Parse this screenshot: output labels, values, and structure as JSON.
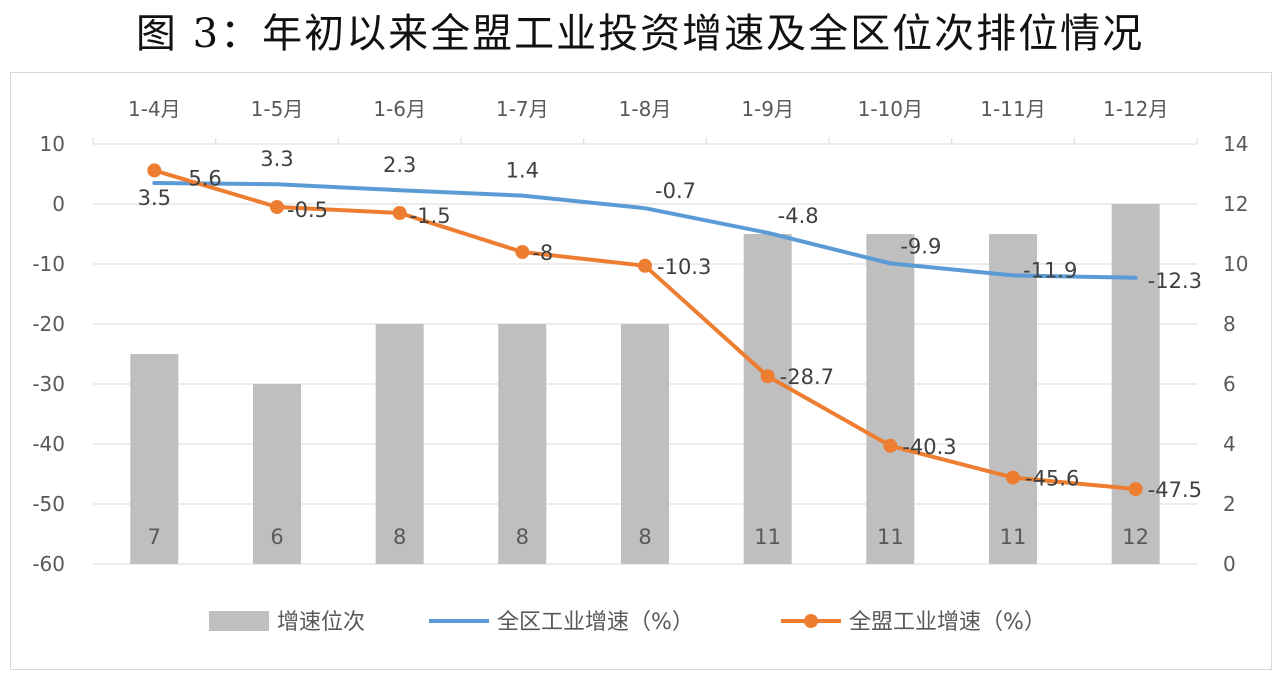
{
  "title": "图 3：年初以来全盟工业投资增速及全区位次排位情况",
  "chart_data": {
    "type": "bar+line",
    "categories": [
      "1-4月",
      "1-5月",
      "1-6月",
      "1-7月",
      "1-8月",
      "1-9月",
      "1-10月",
      "1-11月",
      "1-12月"
    ],
    "left_axis": {
      "range": [
        -60,
        10
      ],
      "ticks": [
        10,
        0,
        -10,
        -20,
        -30,
        -40,
        -50,
        -60
      ]
    },
    "right_axis": {
      "range": [
        0,
        14
      ],
      "ticks": [
        14,
        12,
        10,
        8,
        6,
        4,
        2,
        0
      ]
    },
    "series": [
      {
        "name": "增速位次",
        "type": "bar",
        "axis": "right",
        "color": "#bfbfbf",
        "values": [
          7,
          6,
          8,
          8,
          8,
          11,
          11,
          11,
          12
        ],
        "labels": [
          "7",
          "6",
          "8",
          "8",
          "8",
          "11",
          "11",
          "11",
          "12"
        ]
      },
      {
        "name": "全区工业增速（%）",
        "type": "line",
        "axis": "left",
        "color": "#5b9bd5",
        "values": [
          3.5,
          3.3,
          2.3,
          1.4,
          -0.7,
          -4.8,
          -9.9,
          -11.9,
          -12.3
        ],
        "labels": [
          "3.5",
          "3.3",
          "2.3",
          "1.4",
          "-0.7",
          "-4.8",
          "-9.9",
          "-11.9",
          "-12.3"
        ]
      },
      {
        "name": "全盟工业增速（%）",
        "type": "line",
        "axis": "left",
        "color": "#ed7d31",
        "markers": true,
        "values": [
          5.6,
          -0.5,
          -1.5,
          -8,
          -10.3,
          -28.7,
          -40.3,
          -45.6,
          -47.5
        ],
        "labels": [
          "5.6",
          "-0.5",
          "-1.5",
          "-8",
          "-10.3",
          "-28.7",
          "-40.3",
          "-45.6",
          "-47.5"
        ]
      }
    ],
    "legend": [
      "增速位次",
      "全区工业增速（%）",
      "全盟工业增速（%）"
    ],
    "legend_position": "bottom",
    "category_axis_position": "top",
    "grid": true
  }
}
